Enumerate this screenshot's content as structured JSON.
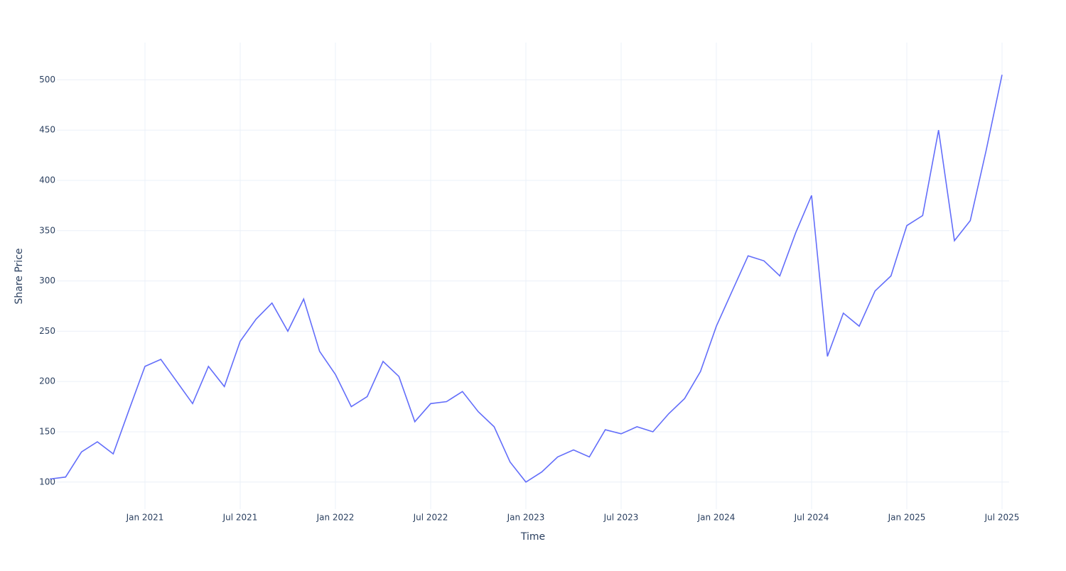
{
  "chart_data": {
    "type": "line",
    "x_label": "Time",
    "y_label": "Share Price",
    "x": [
      "2020-07",
      "2020-08",
      "2020-09",
      "2020-10",
      "2020-11",
      "2020-12",
      "2021-01",
      "2021-02",
      "2021-03",
      "2021-04",
      "2021-05",
      "2021-06",
      "2021-07",
      "2021-08",
      "2021-09",
      "2021-10",
      "2021-11",
      "2021-12",
      "2022-01",
      "2022-02",
      "2022-03",
      "2022-04",
      "2022-05",
      "2022-06",
      "2022-07",
      "2022-08",
      "2022-09",
      "2022-10",
      "2022-11",
      "2022-12",
      "2023-01",
      "2023-02",
      "2023-03",
      "2023-04",
      "2023-05",
      "2023-06",
      "2023-07",
      "2023-08",
      "2023-09",
      "2023-10",
      "2023-11",
      "2023-12",
      "2024-01",
      "2024-02",
      "2024-03",
      "2024-04",
      "2024-05",
      "2024-06",
      "2024-07",
      "2024-08",
      "2024-09",
      "2024-10",
      "2024-11",
      "2024-12",
      "2025-01",
      "2025-02",
      "2025-03",
      "2025-04",
      "2025-05",
      "2025-06",
      "2025-07"
    ],
    "series": [
      {
        "name": "Share Price",
        "color": "#636efa",
        "values": [
          103,
          105,
          130,
          140,
          128,
          172,
          215,
          222,
          200,
          178,
          215,
          195,
          240,
          262,
          278,
          250,
          282,
          230,
          207,
          175,
          185,
          220,
          205,
          160,
          178,
          180,
          190,
          170,
          155,
          120,
          100,
          110,
          125,
          132,
          125,
          152,
          148,
          155,
          150,
          168,
          183,
          210,
          255,
          290,
          325,
          320,
          305,
          348,
          385,
          225,
          268,
          255,
          290,
          305,
          355,
          365,
          450,
          340,
          360,
          430,
          505
        ]
      }
    ],
    "xlim": [
      "2020-07",
      "2025-07"
    ],
    "xticks": [
      {
        "value": "2021-01",
        "label": "Jan 2021"
      },
      {
        "value": "2021-07",
        "label": "Jul 2021"
      },
      {
        "value": "2022-01",
        "label": "Jan 2022"
      },
      {
        "value": "2022-07",
        "label": "Jul 2022"
      },
      {
        "value": "2023-01",
        "label": "Jan 2023"
      },
      {
        "value": "2023-07",
        "label": "Jul 2023"
      },
      {
        "value": "2024-01",
        "label": "Jan 2024"
      },
      {
        "value": "2024-07",
        "label": "Jul 2024"
      },
      {
        "value": "2025-01",
        "label": "Jan 2025"
      },
      {
        "value": "2025-07",
        "label": "Jul 2025"
      }
    ],
    "ylim": [
      73,
      537
    ],
    "yticks": [
      100,
      150,
      200,
      250,
      300,
      350,
      400,
      450,
      500
    ],
    "grid": true
  }
}
